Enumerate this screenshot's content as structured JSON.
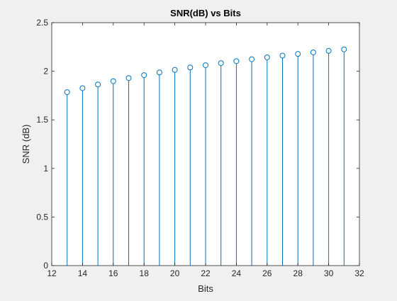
{
  "chart_data": {
    "type": "stem",
    "title": "SNR(dB) vs Bits",
    "xlabel": "Bits",
    "ylabel": "SNR (dB)",
    "xlim": [
      12,
      32
    ],
    "ylim": [
      0,
      2.5
    ],
    "xticks": [
      12,
      14,
      16,
      18,
      20,
      22,
      24,
      26,
      28,
      30,
      32
    ],
    "yticks": [
      0,
      0.5,
      1,
      1.5,
      2,
      2.5
    ],
    "ytick_labels": [
      "0",
      "0.5",
      "1",
      "1.5",
      "2",
      "2.5"
    ],
    "grid": false,
    "marker": "circle",
    "series": [
      {
        "x": [
          13,
          14,
          15,
          16,
          17,
          18,
          19,
          20,
          21,
          22,
          23,
          24,
          25,
          26,
          27,
          28,
          29,
          30,
          31
        ],
        "values": [
          1.785,
          1.826,
          1.864,
          1.898,
          1.93,
          1.96,
          1.988,
          2.014,
          2.039,
          2.062,
          2.084,
          2.104,
          2.124,
          2.143,
          2.161,
          2.178,
          2.194,
          2.21,
          2.225
        ]
      }
    ],
    "colors": {
      "stem": "#0072BD",
      "axes_bg": "#ffffff",
      "figure_bg": "#f0f0f0",
      "axis": "#262626"
    }
  }
}
